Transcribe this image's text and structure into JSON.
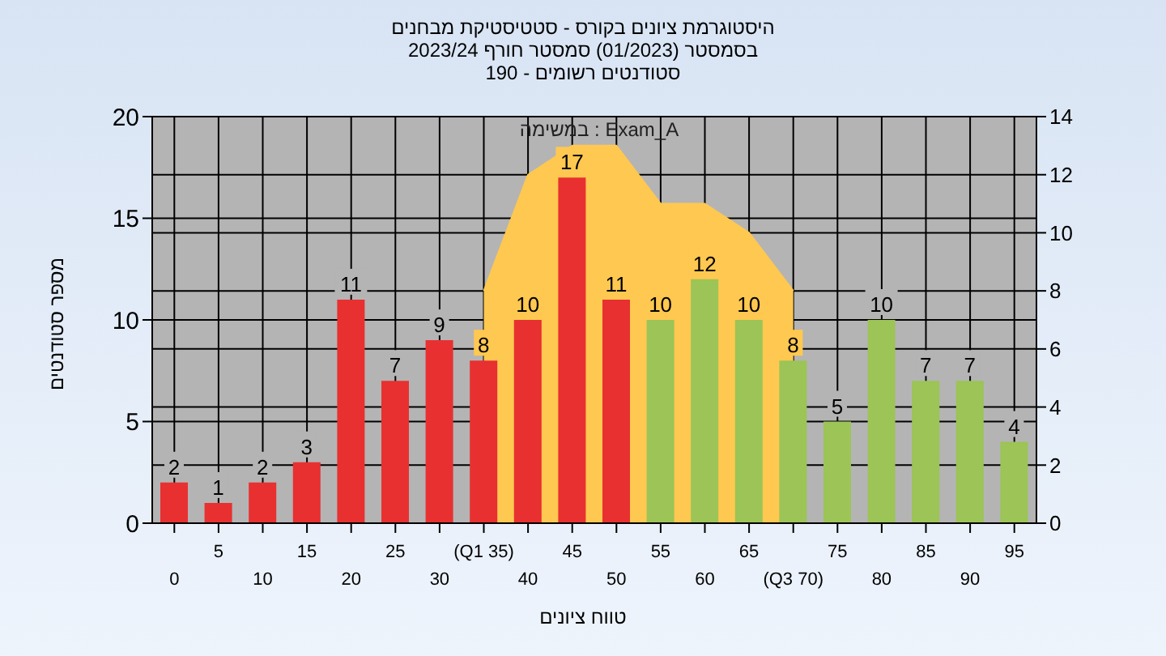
{
  "chart_data": {
    "type": "bar",
    "title": "היסטוגרמת ציונים בקורס - סטטיסטיקת מבחנים",
    "subtitle": "בסמסטר  (01/2023)  סמסטר חורף  2023/24\nסטודנטים רשומים - 190",
    "xlabel": "טווח ציונים",
    "ylabel": "מספר סטודנטים",
    "annotations": [
      "במשימה : Exam_A"
    ],
    "categories": [
      "0",
      "5",
      "10",
      "15",
      "20",
      "25",
      "30",
      "(Q1 35)",
      "40",
      "45",
      "50",
      "55",
      "60",
      "65",
      "(Q3 70)",
      "75",
      "80",
      "85",
      "90",
      "95"
    ],
    "series": [
      {
        "axis": "y2",
        "type": "area",
        "color": "#ffc850",
        "values": [
          null,
          null,
          null,
          null,
          null,
          null,
          null,
          8,
          12,
          13,
          13,
          11,
          11,
          10,
          8,
          null,
          null,
          null,
          null,
          null
        ]
      },
      {
        "data_labels": true,
        "colors": [
          "#e83030",
          "#e83030",
          "#e83030",
          "#e83030",
          "#e83030",
          "#e83030",
          "#e83030",
          "#e83030",
          "#e83030",
          "#e83030",
          "#e83030",
          "#9cc456",
          "#9cc456",
          "#9cc456",
          "#9cc456",
          "#9cc456",
          "#9cc456",
          "#9cc456",
          "#9cc456",
          "#9cc456"
        ],
        "values": [
          2,
          1,
          2,
          3,
          11,
          7,
          9,
          8,
          10,
          17,
          11,
          10,
          12,
          10,
          8,
          5,
          10,
          7,
          7,
          4
        ]
      }
    ],
    "ylim": [
      0,
      20
    ],
    "yticks": [
      0,
      5,
      10,
      15,
      20
    ],
    "y2lim": [
      0,
      14
    ],
    "y2ticks": [
      0,
      2,
      4,
      6,
      8,
      10,
      12,
      14
    ],
    "grid": true,
    "legend": false
  }
}
